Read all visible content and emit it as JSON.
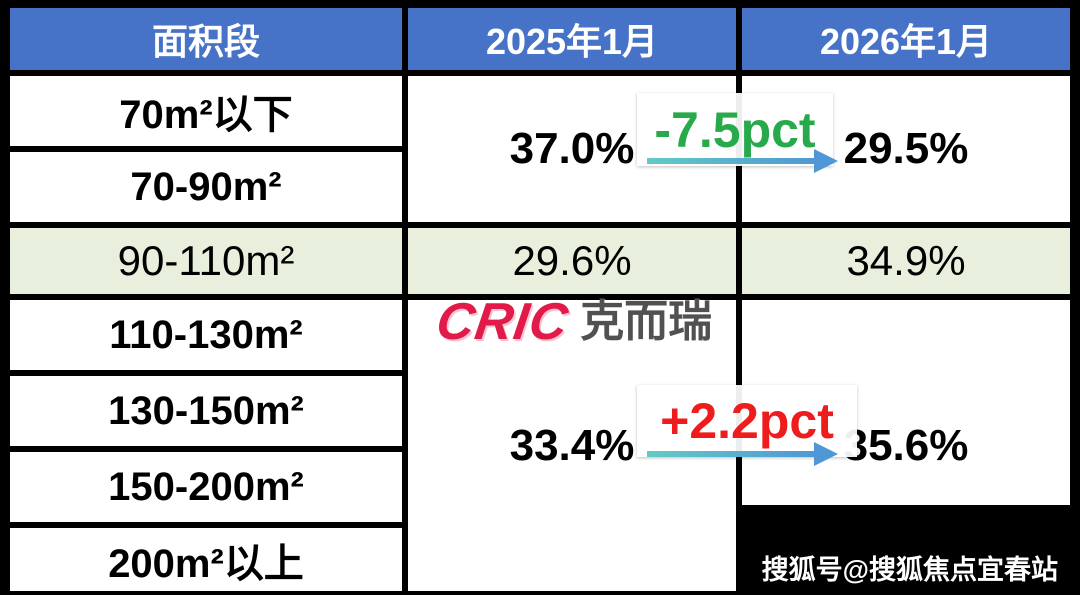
{
  "table": {
    "header": {
      "area": "面积段",
      "m2025": "2025年1月",
      "m2026": "2026年1月"
    },
    "areas": {
      "a1": "70m²以下",
      "a2": "70-90m²",
      "a3": "90-110m²",
      "a4": "110-130m²",
      "a5": "130-150m²",
      "a6": "150-200m²",
      "a7": "200m²以上"
    },
    "values": {
      "small_2025": "37.0%",
      "small_2026": "29.5%",
      "small_change": "-7.5pct",
      "mid_2025": "29.6%",
      "mid_2026": "34.9%",
      "large_2025": "33.4%",
      "large_2026": "35.6%",
      "large_change": "+2.2pct"
    }
  },
  "watermarks": {
    "cric_en": "CRIC",
    "cric_cn": "克而瑞",
    "sohu": "搜狐号@搜狐焦点宜春站"
  },
  "colors": {
    "header_blue": "#4673c8",
    "highlight_row_green": "#e8efdc",
    "decrease_green": "#28a94b",
    "increase_red": "#ee1c1c",
    "cric_red": "#e11a4a",
    "arrow_teal": "#62cbc5",
    "arrow_blue": "#4f97d6"
  },
  "chart_data": {
    "type": "table",
    "columns": [
      "面积段",
      "2025年1月",
      "2026年1月"
    ],
    "row_groups": [
      {
        "areas": [
          "70m²以下",
          "70-90m²"
        ],
        "v2025": "37.0%",
        "v2026": "29.5%",
        "change": "-7.5pct"
      },
      {
        "areas": [
          "90-110m²"
        ],
        "v2025": "29.6%",
        "v2026": "34.9%",
        "change": null
      },
      {
        "areas": [
          "110-130m²",
          "130-150m²",
          "150-200m²",
          "200m²以上"
        ],
        "v2025": "33.4%",
        "v2026": "35.6%",
        "change": "+2.2pct"
      }
    ],
    "highlighted_row": "90-110m²",
    "notes": "merged cells: rows 1-2 share values; rows 4-7 share values"
  }
}
